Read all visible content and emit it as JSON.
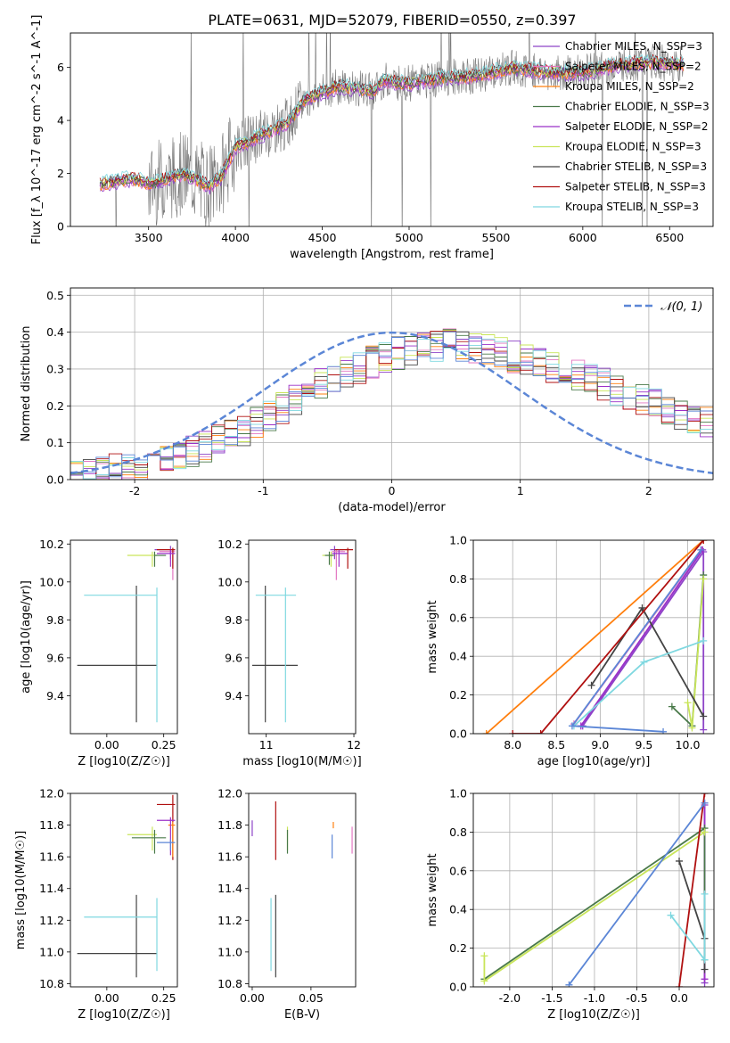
{
  "figure_title": "PLATE=0631, MJD=52079, FIBERID=0550, z=0.397",
  "colors": {
    "chabrier_miles": "#8e44c8",
    "salpeter_miles": "#e377c2",
    "kroupa_miles": "#ff7f0e",
    "chabrier_elodie": "#4a7a4a",
    "salpeter_elodie": "#9b30c8",
    "kroupa_elodie": "#c9e55a",
    "chabrier_stelib": "#444444",
    "salpeter_stelib": "#b01010",
    "kroupa_stelib": "#7fd8e0",
    "data": "#777777",
    "normal": "#5b86d6"
  },
  "chart_data": [
    {
      "id": "spectrum",
      "type": "line",
      "xlabel": "wavelength [Angstrom, rest frame]",
      "ylabel": "Flux [f_λ 10^-17 erg cm^-2 s^-1 A^-1]",
      "xlim": [
        3050,
        6750
      ],
      "ylim": [
        0,
        7.3
      ],
      "xticks": [
        3500,
        4000,
        4500,
        5000,
        5500,
        6000,
        6500
      ],
      "yticks": [
        0,
        2,
        4,
        6
      ],
      "legend_position": "upper right",
      "series": [
        {
          "name": "Chabrier MILES, N_SSP=3",
          "color": "#8e44c8"
        },
        {
          "name": "Salpeter MILES, N_SSP=2",
          "color": "#e377c2"
        },
        {
          "name": "Kroupa MILES, N_SSP=2",
          "color": "#ff7f0e"
        },
        {
          "name": "Chabrier ELODIE, N_SSP=3",
          "color": "#4a7a4a"
        },
        {
          "name": "Salpeter ELODIE, N_SSP=2",
          "color": "#9b30c8"
        },
        {
          "name": "Kroupa ELODIE, N_SSP=3",
          "color": "#c9e55a"
        },
        {
          "name": "Chabrier STELIB, N_SSP=3",
          "color": "#444444"
        },
        {
          "name": "Salpeter STELIB, N_SSP=3",
          "color": "#b01010"
        },
        {
          "name": "Kroupa STELIB, N_SSP=3",
          "color": "#7fd8e0"
        }
      ],
      "continuum_points": [
        [
          3220,
          1.6
        ],
        [
          3400,
          1.8
        ],
        [
          3520,
          1.6
        ],
        [
          3700,
          2.0
        ],
        [
          3850,
          1.5
        ],
        [
          3920,
          1.9
        ],
        [
          4000,
          3.0
        ],
        [
          4200,
          3.6
        ],
        [
          4300,
          3.9
        ],
        [
          4400,
          4.8
        ],
        [
          4600,
          5.3
        ],
        [
          4800,
          5.1
        ],
        [
          4850,
          5.5
        ],
        [
          5000,
          5.4
        ],
        [
          5200,
          5.6
        ],
        [
          5400,
          5.7
        ],
        [
          5600,
          6.0
        ],
        [
          5800,
          5.8
        ],
        [
          6000,
          5.8
        ],
        [
          6200,
          6.1
        ],
        [
          6400,
          6.2
        ],
        [
          6580,
          6.1
        ]
      ]
    },
    {
      "id": "residuals",
      "type": "histogram",
      "xlabel": "(data-model)/error",
      "ylabel": "Normed distribution",
      "xlim": [
        -2.5,
        2.5
      ],
      "ylim": [
        0,
        0.52
      ],
      "xticks": [
        -2,
        -1,
        0,
        1,
        2
      ],
      "yticks": [
        0.0,
        0.1,
        0.2,
        0.3,
        0.4,
        0.5
      ],
      "legend": "𝒩(0, 1)",
      "reference_curve": "normal(0,1)",
      "bin_width": 0.1,
      "envelope_points": [
        [
          -2.5,
          0.015
        ],
        [
          -2.0,
          0.03
        ],
        [
          -1.5,
          0.08
        ],
        [
          -1.0,
          0.16
        ],
        [
          -0.5,
          0.27
        ],
        [
          0.0,
          0.34
        ],
        [
          0.5,
          0.37
        ],
        [
          1.0,
          0.33
        ],
        [
          1.5,
          0.28
        ],
        [
          2.0,
          0.21
        ],
        [
          2.5,
          0.15
        ]
      ]
    },
    {
      "id": "age_vs_Z",
      "type": "errorbar",
      "xlabel": "Z [log10(Z/Z☉)]",
      "ylabel": "age [log10(age/yr)]",
      "xlim": [
        -0.16,
        0.31
      ],
      "ylim": [
        9.2,
        10.22
      ],
      "xticks": [
        0.0,
        0.25
      ],
      "yticks": [
        9.4,
        9.6,
        9.8,
        10.0,
        10.2
      ],
      "points": [
        {
          "series": "Chabrier STELIB",
          "x": 0.13,
          "y": 9.56,
          "xerr": [
            0.26,
            0.09
          ],
          "yerr": [
            0.3,
            0.42
          ]
        },
        {
          "series": "Kroupa STELIB",
          "x": 0.22,
          "y": 9.93,
          "xerr": [
            0.32,
            0.0
          ],
          "yerr": [
            0.67,
            0.04
          ]
        },
        {
          "series": "Kroupa ELODIE",
          "x": 0.2,
          "y": 10.14,
          "xerr": [
            0.11,
            0.02
          ],
          "yerr": [
            0.06,
            0.02
          ]
        },
        {
          "series": "Chabrier ELODIE",
          "x": 0.21,
          "y": 10.14,
          "xerr": [
            0.0,
            0.05
          ],
          "yerr": [
            0.06,
            0.02
          ]
        },
        {
          "series": "Chabrier MILES",
          "x": 0.28,
          "y": 10.17,
          "xerr": [
            0.07,
            0.02
          ],
          "yerr": [
            0.05,
            0.02
          ]
        },
        {
          "series": "Salpeter MILES",
          "x": 0.29,
          "y": 10.16,
          "xerr": [
            0.06,
            0.01
          ],
          "yerr": [
            0.15,
            0.01
          ]
        },
        {
          "series": "Salpeter STELIB",
          "x": 0.29,
          "y": 10.17,
          "xerr": [
            0.07,
            0.01
          ],
          "yerr": [
            0.1,
            0.01
          ]
        },
        {
          "series": "Salpeter ELODIE",
          "x": 0.28,
          "y": 10.15,
          "xerr": [
            0.06,
            0.02
          ],
          "yerr": [
            0.07,
            0.02
          ]
        }
      ]
    },
    {
      "id": "age_vs_mass",
      "type": "errorbar",
      "xlabel": "mass [log10(M/M☉)]",
      "ylabel": "",
      "xlim": [
        10.8,
        12.02
      ],
      "ylim": [
        9.2,
        10.22
      ],
      "xticks": [
        11,
        12
      ],
      "yticks": [
        9.4,
        9.6,
        9.8,
        10.0,
        10.2
      ],
      "points": [
        {
          "series": "Chabrier STELIB",
          "x": 10.99,
          "y": 9.56,
          "xerr": [
            0.15,
            0.37
          ],
          "yerr": [
            0.3,
            0.42
          ]
        },
        {
          "series": "Kroupa STELIB",
          "x": 11.22,
          "y": 9.93,
          "xerr": [
            0.34,
            0.12
          ],
          "yerr": [
            0.67,
            0.04
          ]
        },
        {
          "series": "Kroupa ELODIE",
          "x": 11.74,
          "y": 10.14,
          "xerr": [
            0.1,
            0.05
          ],
          "yerr": [
            0.06,
            0.02
          ]
        },
        {
          "series": "Chabrier ELODIE",
          "x": 11.72,
          "y": 10.14,
          "xerr": [
            0.05,
            0.05
          ],
          "yerr": [
            0.05,
            0.02
          ]
        },
        {
          "series": "Chabrier MILES",
          "x": 11.78,
          "y": 10.17,
          "xerr": [
            0.05,
            0.1
          ],
          "yerr": [
            0.05,
            0.02
          ]
        },
        {
          "series": "Salpeter MILES",
          "x": 11.8,
          "y": 10.16,
          "xerr": [
            0.05,
            0.1
          ],
          "yerr": [
            0.15,
            0.01
          ]
        },
        {
          "series": "Salpeter STELIB",
          "x": 11.93,
          "y": 10.17,
          "xerr": [
            0.15,
            0.06
          ],
          "yerr": [
            0.1,
            0.01
          ]
        },
        {
          "series": "Salpeter ELODIE",
          "x": 11.83,
          "y": 10.15,
          "xerr": [
            0.08,
            0.1
          ],
          "yerr": [
            0.07,
            0.02
          ]
        }
      ]
    },
    {
      "id": "weight_vs_age",
      "type": "line",
      "xlabel": "age [log10(age/yr)]",
      "ylabel": "mass weight",
      "xlim": [
        7.55,
        10.3
      ],
      "ylim": [
        0,
        1.0
      ],
      "xticks": [
        8.0,
        8.5,
        9.0,
        9.5,
        10.0
      ],
      "yticks": [
        0.0,
        0.2,
        0.4,
        0.6,
        0.8,
        1.0
      ],
      "grid": true,
      "series": [
        {
          "name": "Chabrier MILES",
          "x": [
            8.8,
            10.18,
            10.18
          ],
          "y": [
            0.04,
            0.94,
            0.02
          ]
        },
        {
          "name": "Salpeter MILES",
          "x": [
            8.7,
            10.16
          ],
          "y": [
            0.05,
            0.95
          ]
        },
        {
          "name": "Kroupa MILES",
          "x": [
            7.7,
            10.18
          ],
          "y": [
            0.0,
            1.0
          ]
        },
        {
          "name": "Chabrier ELODIE",
          "x": [
            9.82,
            10.05,
            10.18
          ],
          "y": [
            0.14,
            0.04,
            0.82
          ]
        },
        {
          "name": "Salpeter ELODIE",
          "x": [
            8.78,
            10.17
          ],
          "y": [
            0.04,
            0.95
          ]
        },
        {
          "name": "Kroupa ELODIE",
          "x": [
            10.0,
            10.05,
            10.18
          ],
          "y": [
            0.16,
            0.03,
            0.8
          ]
        },
        {
          "name": "Chabrier STELIB",
          "x": [
            8.9,
            9.48,
            10.18
          ],
          "y": [
            0.25,
            0.65,
            0.09
          ]
        },
        {
          "name": "Salpeter STELIB",
          "x": [
            8.0,
            8.32,
            10.18
          ],
          "y": [
            0.0,
            0.0,
            1.0
          ]
        },
        {
          "name": "Kroupa STELIB",
          "x": [
            8.7,
            9.5,
            10.18
          ],
          "y": [
            0.04,
            0.37,
            0.48
          ]
        },
        {
          "name": "blue",
          "x": [
            9.72,
            8.68,
            10.15
          ],
          "y": [
            0.01,
            0.04,
            0.95
          ]
        }
      ]
    },
    {
      "id": "mass_vs_Z",
      "type": "errorbar",
      "xlabel": "Z [log10(Z/Z☉)]",
      "ylabel": "mass [log10(M/M☉)]",
      "xlim": [
        -0.16,
        0.31
      ],
      "ylim": [
        10.78,
        12.0
      ],
      "xticks": [
        0.0,
        0.25
      ],
      "yticks": [
        10.8,
        11.0,
        11.2,
        11.4,
        11.6,
        11.8,
        12.0
      ],
      "points": [
        {
          "series": "Chabrier STELIB",
          "x": 0.13,
          "y": 10.99,
          "xerr": [
            0.26,
            0.09
          ],
          "yerr": [
            0.15,
            0.37
          ]
        },
        {
          "series": "Kroupa STELIB",
          "x": 0.22,
          "y": 11.22,
          "xerr": [
            0.32,
            0.0
          ],
          "yerr": [
            0.34,
            0.12
          ]
        },
        {
          "series": "Kroupa ELODIE",
          "x": 0.2,
          "y": 11.74,
          "xerr": [
            0.11,
            0.02
          ],
          "yerr": [
            0.1,
            0.05
          ]
        },
        {
          "series": "Chabrier ELODIE",
          "x": 0.21,
          "y": 11.72,
          "xerr": [
            0.1,
            0.05
          ],
          "yerr": [
            0.1,
            0.05
          ]
        },
        {
          "series": "Salpeter STELIB",
          "x": 0.29,
          "y": 11.93,
          "xerr": [
            0.07,
            0.01
          ],
          "yerr": [
            0.35,
            0.06
          ]
        },
        {
          "series": "Kroupa MILES",
          "x": 0.29,
          "y": 11.8,
          "xerr": [
            0.02,
            0.01
          ],
          "yerr": [
            0.2,
            0.02
          ]
        },
        {
          "series": "Salpeter ELODIE",
          "x": 0.28,
          "y": 11.83,
          "xerr": [
            0.06,
            0.02
          ],
          "yerr": [
            0.22,
            0.02
          ]
        },
        {
          "series": "blue",
          "x": 0.28,
          "y": 11.69,
          "xerr": [
            0.06,
            0.02
          ],
          "yerr": [
            0.05,
            0.02
          ]
        }
      ]
    },
    {
      "id": "mass_vs_ebv",
      "type": "errorbar",
      "xlabel": "E(B-V)",
      "ylabel": "",
      "xlim": [
        -0.003,
        0.088
      ],
      "ylim": [
        10.78,
        12.0
      ],
      "xticks": [
        0.0,
        0.05
      ],
      "yticks": [
        10.8,
        11.0,
        11.2,
        11.4,
        11.6,
        11.8,
        12.0
      ],
      "points": [
        {
          "series": "Chabrier STELIB",
          "x": 0.02,
          "y": 10.99,
          "xerr": [
            0,
            0
          ],
          "yerr": [
            0.15,
            0.37
          ]
        },
        {
          "series": "Kroupa STELIB",
          "x": 0.016,
          "y": 11.22,
          "xerr": [
            0,
            0
          ],
          "yerr": [
            0.34,
            0.12
          ]
        },
        {
          "series": "Salpeter STELIB",
          "x": 0.02,
          "y": 11.93,
          "xerr": [
            0,
            0
          ],
          "yerr": [
            0.35,
            0.02
          ]
        },
        {
          "series": "Kroupa ELODIE",
          "x": 0.03,
          "y": 11.74,
          "xerr": [
            0,
            0
          ],
          "yerr": [
            0.1,
            0.05
          ]
        },
        {
          "series": "Chabrier ELODIE",
          "x": 0.03,
          "y": 11.72,
          "xerr": [
            0,
            0
          ],
          "yerr": [
            0.1,
            0.05
          ]
        },
        {
          "series": "Chabrier MILES",
          "x": 0.0,
          "y": 11.78,
          "xerr": [
            0,
            0
          ],
          "yerr": [
            0.05,
            0.05
          ]
        },
        {
          "series": "blue",
          "x": 0.068,
          "y": 11.69,
          "xerr": [
            0,
            0
          ],
          "yerr": [
            0.1,
            0.05
          ]
        },
        {
          "series": "Kroupa MILES",
          "x": 0.069,
          "y": 11.8,
          "xerr": [
            0,
            0
          ],
          "yerr": [
            0.02,
            0.02
          ]
        },
        {
          "series": "Salpeter MILES",
          "x": 0.085,
          "y": 11.69,
          "xerr": [
            0,
            0
          ],
          "yerr": [
            0.07,
            0.1
          ]
        }
      ]
    },
    {
      "id": "weight_vs_Z",
      "type": "line",
      "xlabel": "Z [log10(Z/Z☉)]",
      "ylabel": "mass weight",
      "xlim": [
        -2.43,
        0.41
      ],
      "ylim": [
        0,
        1.0
      ],
      "xticks": [
        -2.0,
        -1.5,
        -1.0,
        -0.5,
        0.0
      ],
      "yticks": [
        0.0,
        0.2,
        0.4,
        0.6,
        0.8,
        1.0
      ],
      "grid": true,
      "series": [
        {
          "name": "Chabrier MILES",
          "x": [
            0.3,
            0.3
          ],
          "y": [
            0.02,
            0.94
          ]
        },
        {
          "name": "Salpeter ELODIE",
          "x": [
            0.3,
            0.3
          ],
          "y": [
            0.04,
            0.95
          ]
        },
        {
          "name": "Chabrier ELODIE",
          "x": [
            -2.3,
            0.3,
            0.3
          ],
          "y": [
            0.04,
            0.82,
            0.14
          ]
        },
        {
          "name": "Kroupa ELODIE",
          "x": [
            -2.3,
            -2.3,
            0.3
          ],
          "y": [
            0.16,
            0.03,
            0.8
          ]
        },
        {
          "name": "Chabrier STELIB",
          "x": [
            0.0,
            0.3,
            0.3
          ],
          "y": [
            0.65,
            0.25,
            0.09
          ]
        },
        {
          "name": "Salpeter STELIB",
          "x": [
            0.0,
            0.3
          ],
          "y": [
            0.0,
            1.0
          ]
        },
        {
          "name": "Kroupa STELIB",
          "x": [
            -0.1,
            0.3,
            0.3
          ],
          "y": [
            0.37,
            0.14,
            0.48
          ]
        },
        {
          "name": "blue",
          "x": [
            -1.3,
            0.3
          ],
          "y": [
            0.01,
            0.95
          ]
        }
      ]
    }
  ]
}
